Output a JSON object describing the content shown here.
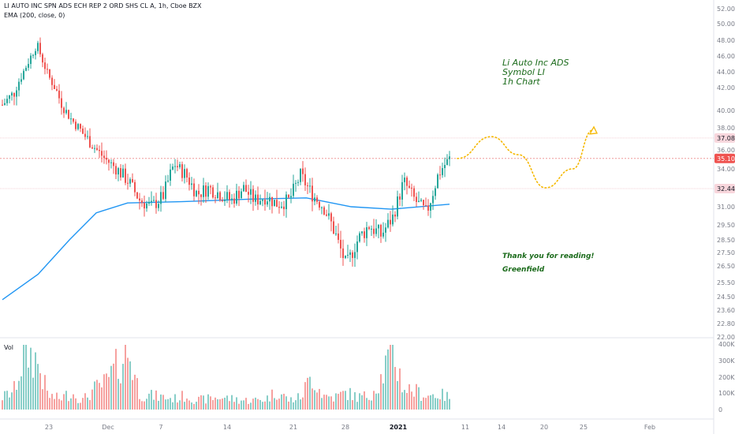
{
  "header": {
    "symbol_title": "LI AUTO INC SPN ADS ECH REP 2 ORD SHS CL A, 1h, Cboe BZX",
    "indicator": "EMA (200, close, 0)",
    "volume_label": "Vol"
  },
  "annotations": {
    "line1": "Li Auto Inc ADS",
    "line2": "Symbol LI",
    "line3": "1h Chart",
    "thanks": "Thank you for reading!",
    "author": "Greenfield"
  },
  "colors": {
    "up": "#26a69a",
    "down": "#ef5350",
    "ema": "#2196f3",
    "forecast": "#f5b800",
    "level_line": "#ef9a9a",
    "text_dark": "#131722",
    "axis_text": "#787b86",
    "annotation": "#1b6b1b"
  },
  "chart_data": {
    "type": "candlestick",
    "price_axis": {
      "ticks": [
        "52.00",
        "50.00",
        "48.00",
        "46.00",
        "44.00",
        "42.00",
        "40.00",
        "38.00",
        "36.00",
        "34.00",
        "31.00",
        "29.50",
        "28.50",
        "27.50",
        "26.50",
        "25.50",
        "24.50",
        "23.60",
        "22.80",
        "22.00"
      ],
      "ylim": [
        22.0,
        52.0
      ]
    },
    "price_labels": [
      {
        "text": "37.08",
        "value": 37.08,
        "style": "level"
      },
      {
        "text": "35.10",
        "value": 35.1,
        "style": "current"
      },
      {
        "text": "32.44",
        "value": 32.44,
        "style": "level"
      }
    ],
    "horizontal_levels": [
      37.08,
      35.1,
      32.44
    ],
    "volume_axis": {
      "ticks": [
        "400K",
        "300K",
        "200K",
        "100K",
        "0"
      ],
      "ylim": [
        0,
        400000
      ]
    },
    "time_axis": {
      "ticks": [
        "23",
        "Dec",
        "7",
        "14",
        "21",
        "28",
        "2021",
        "11",
        "14",
        "20",
        "25",
        "Feb"
      ],
      "bold": [
        "2021"
      ]
    },
    "price_path": [
      40.5,
      41.5,
      44.5,
      47.5,
      43.5,
      41.0,
      39.0,
      37.5,
      36.3,
      35.0,
      34.0,
      33.0,
      31.5,
      31.0,
      31.8,
      34.5,
      33.5,
      32.0,
      32.5,
      32.0,
      31.5,
      32.5,
      31.5,
      31.8,
      31.2,
      31.5,
      33.5,
      32.0,
      31.0,
      29.0,
      26.5,
      28.5,
      29.5,
      28.8,
      30.0,
      33.0,
      31.5,
      30.5,
      33.5,
      35.1
    ],
    "volume_profile": [
      80,
      120,
      380,
      320,
      90,
      70,
      110,
      60,
      130,
      170,
      280,
      380,
      100,
      90,
      80,
      70,
      90,
      60,
      70,
      80,
      70,
      60,
      60,
      70,
      120,
      60,
      80,
      220,
      90,
      80,
      110,
      80,
      90,
      200,
      390,
      140,
      120,
      90,
      100,
      80
    ],
    "ema_200": [
      {
        "x": 0.0,
        "y": 24.3
      },
      {
        "x": 0.08,
        "y": 26.0
      },
      {
        "x": 0.15,
        "y": 28.5
      },
      {
        "x": 0.21,
        "y": 30.5
      },
      {
        "x": 0.28,
        "y": 31.3
      },
      {
        "x": 0.4,
        "y": 31.4
      },
      {
        "x": 0.55,
        "y": 31.6
      },
      {
        "x": 0.68,
        "y": 31.7
      },
      {
        "x": 0.78,
        "y": 31.0
      },
      {
        "x": 0.87,
        "y": 30.8
      },
      {
        "x": 1.0,
        "y": 31.2
      }
    ],
    "forecast": [
      {
        "x": 0.0,
        "y": 35.1
      },
      {
        "x": 0.25,
        "y": 37.2
      },
      {
        "x": 0.45,
        "y": 35.5
      },
      {
        "x": 0.65,
        "y": 32.5
      },
      {
        "x": 0.85,
        "y": 34.0
      },
      {
        "x": 1.0,
        "y": 37.8
      }
    ]
  }
}
